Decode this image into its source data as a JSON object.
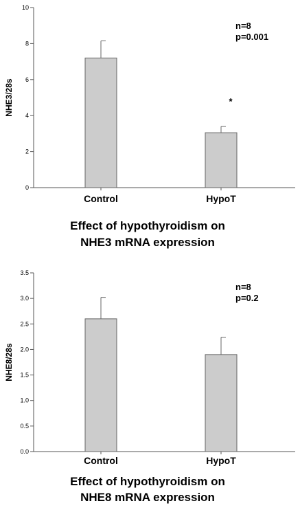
{
  "chart_data": [
    {
      "type": "bar",
      "categories": [
        "Control",
        "HypoT"
      ],
      "values": [
        7.2,
        3.05
      ],
      "errors": [
        0.95,
        0.35
      ],
      "ylabel": "NHE3/28s",
      "ylim": [
        0,
        10
      ],
      "yticks": [
        "0",
        "2",
        "4",
        "6",
        "8",
        "10"
      ],
      "annotations": {
        "n": "n=8",
        "p": "p=0.001",
        "sig": "*"
      },
      "caption_line1": "Effect of hypothyroidism on",
      "caption_line2": "NHE3 mRNA expression",
      "bar_color": "#cccccc"
    },
    {
      "type": "bar",
      "categories": [
        "Control",
        "HypoT"
      ],
      "values": [
        2.6,
        1.9
      ],
      "errors": [
        0.42,
        0.34
      ],
      "ylabel": "NHE8/28s",
      "ylim": [
        0,
        3.5
      ],
      "yticks": [
        "0.0",
        "0.5",
        "1.0",
        "1.5",
        "2.0",
        "2.5",
        "3.0",
        "3.5"
      ],
      "annotations": {
        "n": "n=8",
        "p": "p=0.2"
      },
      "caption_line1": "Effect of hypothyroidism on",
      "caption_line2": "NHE8 mRNA expression",
      "bar_color": "#cccccc"
    }
  ]
}
